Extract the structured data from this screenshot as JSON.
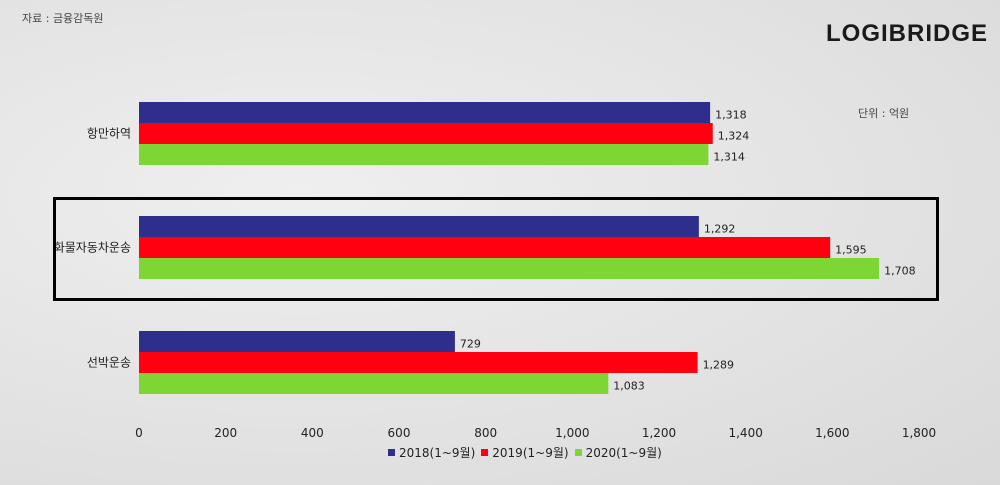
{
  "source": "자료 : 금융감독원",
  "logo": "LOGIBRIDGE",
  "chart_data": {
    "type": "bar",
    "orientation": "horizontal",
    "unit_label": "단위 : 억원",
    "categories": [
      "항만하역",
      "화물자동차운송",
      "선박운송"
    ],
    "series": [
      {
        "name": "2018(1~9월)",
        "color": "#2e2e8c",
        "values": [
          1318,
          1292,
          729
        ]
      },
      {
        "name": "2019(1~9월)",
        "color": "#ff0010",
        "values": [
          1324,
          1595,
          1289
        ]
      },
      {
        "name": "2020(1~9월)",
        "color": "#7ed634",
        "values": [
          1314,
          1708,
          1083
        ]
      }
    ],
    "xlim": [
      0,
      1800
    ],
    "ticks": [
      "0",
      "200",
      "400",
      "600",
      "800",
      "1,000",
      "1,200",
      "1,400",
      "1,600",
      "1,800"
    ],
    "highlighted_category": "화물자동차운송",
    "legend_position": "bottom"
  }
}
